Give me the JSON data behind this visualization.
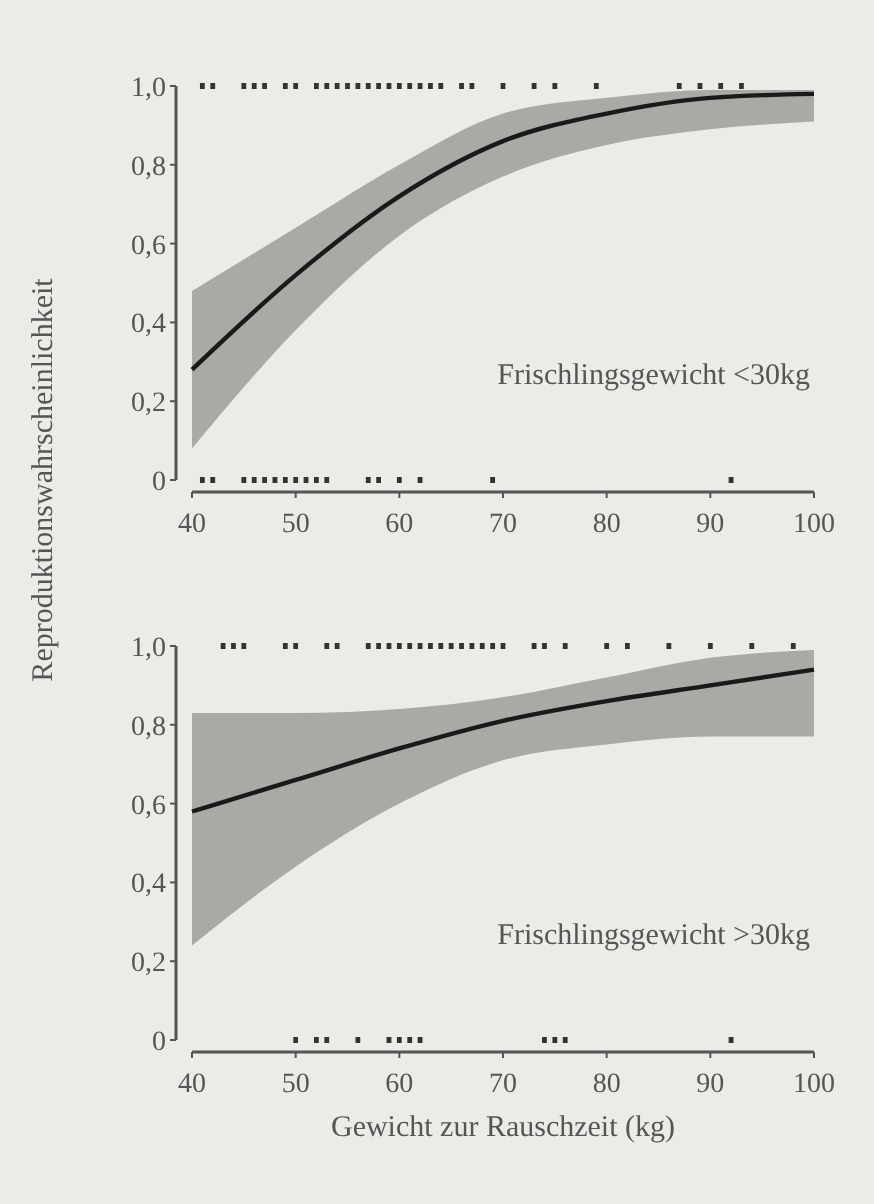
{
  "chart_data": [
    {
      "type": "line",
      "ylabel": "Reproduktionswahrscheinlichkeit",
      "annotations": [
        "Frischlingsgewicht <30kg"
      ],
      "xlim": [
        40,
        100
      ],
      "xticks": [
        40,
        50,
        60,
        70,
        80,
        90,
        100
      ],
      "ylim": [
        0,
        1
      ],
      "yticks": [
        {
          "value": 0,
          "label": "0"
        },
        {
          "value": 0.2,
          "label": "0,2"
        },
        {
          "value": 0.4,
          "label": "0,4"
        },
        {
          "value": 0.6,
          "label": "0,6"
        },
        {
          "value": 0.8,
          "label": "0,8"
        },
        {
          "value": 1,
          "label": "1,0"
        }
      ],
      "grid": false,
      "series": [
        {
          "color": "#1a1a1a",
          "x": [
            40,
            50,
            60,
            70,
            80,
            90,
            100
          ],
          "values": [
            0.28,
            0.52,
            0.72,
            0.86,
            0.93,
            0.97,
            0.98
          ],
          "lower": [
            0.08,
            0.38,
            0.62,
            0.77,
            0.85,
            0.89,
            0.91
          ],
          "upper": [
            0.48,
            0.64,
            0.8,
            0.93,
            0.97,
            0.99,
            0.99
          ],
          "line_style": "solid",
          "marker": "none"
        },
        {
          "type": "scatter",
          "color": "#333333",
          "marker": "square",
          "x": [
            41,
            42,
            45,
            46,
            47,
            49,
            50,
            52,
            53,
            54,
            55,
            56,
            57,
            58,
            59,
            60,
            61,
            62,
            63,
            64,
            66,
            67,
            70,
            73,
            75,
            79,
            87,
            89,
            91,
            93
          ],
          "values": [
            1,
            1,
            1,
            1,
            1,
            1,
            1,
            1,
            1,
            1,
            1,
            1,
            1,
            1,
            1,
            1,
            1,
            1,
            1,
            1,
            1,
            1,
            1,
            1,
            1,
            1,
            1,
            1,
            1,
            1
          ]
        },
        {
          "type": "scatter",
          "color": "#333333",
          "marker": "square",
          "x": [
            41,
            42,
            45,
            46,
            47,
            48,
            49,
            50,
            51,
            52,
            53,
            57,
            58,
            60,
            62,
            69,
            92
          ],
          "values": [
            0,
            0,
            0,
            0,
            0,
            0,
            0,
            0,
            0,
            0,
            0,
            0,
            0,
            0,
            0,
            0,
            0
          ]
        }
      ]
    },
    {
      "type": "line",
      "xlabel": "Gewicht zur Rauschzeit (kg)",
      "annotations": [
        "Frischlingsgewicht >30kg"
      ],
      "xlim": [
        40,
        100
      ],
      "xticks": [
        40,
        50,
        60,
        70,
        80,
        90,
        100
      ],
      "ylim": [
        0,
        1
      ],
      "yticks": [
        {
          "value": 0,
          "label": "0"
        },
        {
          "value": 0.2,
          "label": "0,2"
        },
        {
          "value": 0.4,
          "label": "0,4"
        },
        {
          "value": 0.6,
          "label": "0,6"
        },
        {
          "value": 0.8,
          "label": "0,8"
        },
        {
          "value": 1,
          "label": "1,0"
        }
      ],
      "grid": false,
      "series": [
        {
          "color": "#1a1a1a",
          "x": [
            40,
            50,
            60,
            70,
            80,
            90,
            100
          ],
          "values": [
            0.58,
            0.66,
            0.74,
            0.81,
            0.86,
            0.9,
            0.94
          ],
          "lower": [
            0.24,
            0.44,
            0.6,
            0.71,
            0.75,
            0.77,
            0.77
          ],
          "upper": [
            0.83,
            0.83,
            0.84,
            0.87,
            0.92,
            0.97,
            0.99
          ],
          "line_style": "solid",
          "marker": "none"
        },
        {
          "type": "scatter",
          "color": "#333333",
          "marker": "square",
          "x": [
            43,
            44,
            45,
            49,
            50,
            53,
            54,
            57,
            58,
            59,
            60,
            61,
            62,
            63,
            64,
            65,
            66,
            67,
            68,
            69,
            70,
            73,
            74,
            76,
            80,
            82,
            86,
            90,
            94,
            98
          ],
          "values": [
            1,
            1,
            1,
            1,
            1,
            1,
            1,
            1,
            1,
            1,
            1,
            1,
            1,
            1,
            1,
            1,
            1,
            1,
            1,
            1,
            1,
            1,
            1,
            1,
            1,
            1,
            1,
            1,
            1,
            1
          ]
        },
        {
          "type": "scatter",
          "color": "#333333",
          "marker": "square",
          "x": [
            50,
            52,
            53,
            56,
            59,
            60,
            61,
            62,
            74,
            75,
            76,
            92
          ],
          "values": [
            0,
            0,
            0,
            0,
            0,
            0,
            0,
            0,
            0,
            0,
            0,
            0
          ]
        }
      ]
    }
  ]
}
